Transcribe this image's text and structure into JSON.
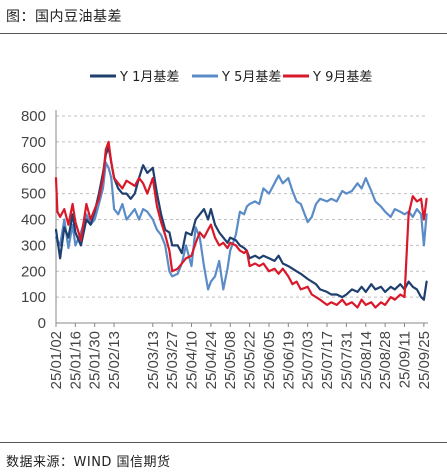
{
  "figure": {
    "title": "图：国内豆油基差",
    "source": "数据来源：WIND 国信期货"
  },
  "colors": {
    "Y1": "#1f3f6e",
    "Y5": "#5b8cc8",
    "Y9": "#d9182a",
    "grid": "#bfbfbf",
    "axis": "#888888"
  },
  "chart_data": {
    "type": "line",
    "title": "",
    "xlabel": "",
    "ylabel": "",
    "ylim": [
      0,
      800
    ],
    "yticks": [
      0,
      100,
      200,
      300,
      400,
      500,
      600,
      700,
      800
    ],
    "grid": "horizontal dashed",
    "legend_position": "top",
    "x_tick_labels": [
      "25/01/02",
      "25/01/16",
      "25/01/30",
      "25/02/13",
      "25/03/13",
      "25/03/27",
      "25/04/10",
      "25/04/24",
      "25/05/08",
      "25/05/22",
      "25/06/05",
      "25/06/19",
      "25/07/03",
      "25/07/17",
      "25/07/31",
      "25/08/14",
      "25/08/28",
      "25/09/11",
      "25/09/25"
    ],
    "series": [
      {
        "name": "Y 1月基差",
        "key": "Y1",
        "points": [
          [
            "25/01/02",
            360
          ],
          [
            "25/01/05",
            250
          ],
          [
            "25/01/08",
            370
          ],
          [
            "25/01/11",
            330
          ],
          [
            "25/01/14",
            420
          ],
          [
            "25/01/16",
            350
          ],
          [
            "25/01/20",
            300
          ],
          [
            "25/01/24",
            400
          ],
          [
            "25/01/27",
            380
          ],
          [
            "25/01/30",
            430
          ],
          [
            "25/02/02",
            500
          ],
          [
            "25/02/05",
            580
          ],
          [
            "25/02/07",
            650
          ],
          [
            "25/02/09",
            680
          ],
          [
            "25/02/11",
            620
          ],
          [
            "25/02/13",
            560
          ],
          [
            "25/02/16",
            520
          ],
          [
            "25/02/19",
            500
          ],
          [
            "25/02/22",
            500
          ],
          [
            "25/02/25",
            480
          ],
          [
            "25/02/28",
            500
          ],
          [
            "25/03/03",
            560
          ],
          [
            "25/03/06",
            610
          ],
          [
            "25/03/09",
            580
          ],
          [
            "25/03/13",
            600
          ],
          [
            "25/03/16",
            500
          ],
          [
            "25/03/19",
            420
          ],
          [
            "25/03/22",
            360
          ],
          [
            "25/03/25",
            350
          ],
          [
            "25/03/27",
            300
          ],
          [
            "25/03/31",
            300
          ],
          [
            "25/04/03",
            270
          ],
          [
            "25/04/06",
            350
          ],
          [
            "25/04/10",
            340
          ],
          [
            "25/04/13",
            400
          ],
          [
            "25/04/16",
            420
          ],
          [
            "25/04/19",
            440
          ],
          [
            "25/04/22",
            400
          ],
          [
            "25/04/24",
            440
          ],
          [
            "25/04/27",
            380
          ],
          [
            "25/04/30",
            350
          ],
          [
            "25/05/03",
            330
          ],
          [
            "25/05/06",
            310
          ],
          [
            "25/05/08",
            330
          ],
          [
            "25/05/12",
            320
          ],
          [
            "25/05/15",
            300
          ],
          [
            "25/05/18",
            290
          ],
          [
            "25/05/20",
            280
          ],
          [
            "25/05/22",
            250
          ],
          [
            "25/05/26",
            260
          ],
          [
            "25/05/29",
            250
          ],
          [
            "25/06/01",
            260
          ],
          [
            "25/06/05",
            250
          ],
          [
            "25/06/09",
            240
          ],
          [
            "25/06/12",
            260
          ],
          [
            "25/06/15",
            230
          ],
          [
            "25/06/19",
            220
          ],
          [
            "25/06/22",
            210
          ],
          [
            "25/06/25",
            200
          ],
          [
            "25/06/28",
            190
          ],
          [
            "25/07/03",
            170
          ],
          [
            "25/07/06",
            160
          ],
          [
            "25/07/09",
            150
          ],
          [
            "25/07/12",
            130
          ],
          [
            "25/07/17",
            120
          ],
          [
            "25/07/20",
            110
          ],
          [
            "25/07/24",
            110
          ],
          [
            "25/07/28",
            100
          ],
          [
            "25/07/31",
            110
          ],
          [
            "25/08/04",
            130
          ],
          [
            "25/08/08",
            120
          ],
          [
            "25/08/11",
            140
          ],
          [
            "25/08/14",
            120
          ],
          [
            "25/08/18",
            150
          ],
          [
            "25/08/21",
            130
          ],
          [
            "25/08/25",
            140
          ],
          [
            "25/08/28",
            120
          ],
          [
            "25/09/01",
            140
          ],
          [
            "25/09/04",
            130
          ],
          [
            "25/09/08",
            150
          ],
          [
            "25/09/11",
            130
          ],
          [
            "25/09/14",
            160
          ],
          [
            "25/09/17",
            140
          ],
          [
            "25/09/20",
            130
          ],
          [
            "25/09/23",
            100
          ],
          [
            "25/09/25",
            90
          ],
          [
            "25/09/27",
            160
          ]
        ]
      },
      {
        "name": "Y 5月基差",
        "key": "Y5",
        "points": [
          [
            "25/01/02",
            330
          ],
          [
            "25/01/05",
            300
          ],
          [
            "25/01/08",
            400
          ],
          [
            "25/01/11",
            290
          ],
          [
            "25/01/14",
            380
          ],
          [
            "25/01/16",
            300
          ],
          [
            "25/01/20",
            350
          ],
          [
            "25/01/24",
            420
          ],
          [
            "25/01/27",
            380
          ],
          [
            "25/01/30",
            400
          ],
          [
            "25/02/02",
            460
          ],
          [
            "25/02/05",
            520
          ],
          [
            "25/02/07",
            620
          ],
          [
            "25/02/09",
            600
          ],
          [
            "25/02/11",
            560
          ],
          [
            "25/02/13",
            440
          ],
          [
            "25/02/16",
            420
          ],
          [
            "25/02/19",
            460
          ],
          [
            "25/02/22",
            400
          ],
          [
            "25/02/25",
            420
          ],
          [
            "25/02/28",
            440
          ],
          [
            "25/03/03",
            400
          ],
          [
            "25/03/06",
            440
          ],
          [
            "25/03/09",
            430
          ],
          [
            "25/03/13",
            400
          ],
          [
            "25/03/16",
            360
          ],
          [
            "25/03/19",
            340
          ],
          [
            "25/03/22",
            300
          ],
          [
            "25/03/25",
            200
          ],
          [
            "25/03/27",
            180
          ],
          [
            "25/03/31",
            190
          ],
          [
            "25/04/03",
            230
          ],
          [
            "25/04/06",
            300
          ],
          [
            "25/04/10",
            220
          ],
          [
            "25/04/13",
            370
          ],
          [
            "25/04/16",
            330
          ],
          [
            "25/04/19",
            220
          ],
          [
            "25/04/22",
            130
          ],
          [
            "25/04/24",
            160
          ],
          [
            "25/04/27",
            180
          ],
          [
            "25/04/30",
            240
          ],
          [
            "25/05/03",
            130
          ],
          [
            "25/05/06",
            210
          ],
          [
            "25/05/08",
            280
          ],
          [
            "25/05/12",
            340
          ],
          [
            "25/05/15",
            430
          ],
          [
            "25/05/18",
            420
          ],
          [
            "25/05/20",
            450
          ],
          [
            "25/05/22",
            460
          ],
          [
            "25/05/26",
            470
          ],
          [
            "25/05/29",
            460
          ],
          [
            "25/06/01",
            520
          ],
          [
            "25/06/05",
            500
          ],
          [
            "25/06/09",
            540
          ],
          [
            "25/06/12",
            570
          ],
          [
            "25/06/15",
            540
          ],
          [
            "25/06/19",
            560
          ],
          [
            "25/06/22",
            510
          ],
          [
            "25/06/25",
            470
          ],
          [
            "25/06/28",
            460
          ],
          [
            "25/07/03",
            390
          ],
          [
            "25/07/06",
            410
          ],
          [
            "25/07/09",
            460
          ],
          [
            "25/07/12",
            480
          ],
          [
            "25/07/17",
            470
          ],
          [
            "25/07/20",
            480
          ],
          [
            "25/07/24",
            470
          ],
          [
            "25/07/28",
            510
          ],
          [
            "25/07/31",
            500
          ],
          [
            "25/08/04",
            510
          ],
          [
            "25/08/08",
            540
          ],
          [
            "25/08/11",
            520
          ],
          [
            "25/08/14",
            560
          ],
          [
            "25/08/18",
            510
          ],
          [
            "25/08/21",
            470
          ],
          [
            "25/08/25",
            450
          ],
          [
            "25/08/28",
            430
          ],
          [
            "25/09/01",
            410
          ],
          [
            "25/09/04",
            440
          ],
          [
            "25/09/08",
            430
          ],
          [
            "25/09/11",
            420
          ],
          [
            "25/09/14",
            430
          ],
          [
            "25/09/17",
            410
          ],
          [
            "25/09/20",
            440
          ],
          [
            "25/09/23",
            420
          ],
          [
            "25/09/25",
            300
          ],
          [
            "25/09/27",
            420
          ]
        ]
      },
      {
        "name": "Y 9月基差",
        "key": "Y9",
        "points": [
          [
            "25/01/02",
            560
          ],
          [
            "25/01/03",
            430
          ],
          [
            "25/01/05",
            410
          ],
          [
            "25/01/08",
            440
          ],
          [
            "25/01/11",
            380
          ],
          [
            "25/01/14",
            460
          ],
          [
            "25/01/16",
            390
          ],
          [
            "25/01/20",
            320
          ],
          [
            "25/01/24",
            460
          ],
          [
            "25/01/27",
            400
          ],
          [
            "25/01/30",
            440
          ],
          [
            "25/02/02",
            480
          ],
          [
            "25/02/05",
            560
          ],
          [
            "25/02/07",
            670
          ],
          [
            "25/02/09",
            700
          ],
          [
            "25/02/11",
            620
          ],
          [
            "25/02/13",
            560
          ],
          [
            "25/02/16",
            540
          ],
          [
            "25/02/19",
            520
          ],
          [
            "25/02/22",
            550
          ],
          [
            "25/02/25",
            540
          ],
          [
            "25/02/28",
            530
          ],
          [
            "25/03/03",
            560
          ],
          [
            "25/03/06",
            540
          ],
          [
            "25/03/09",
            500
          ],
          [
            "25/03/13",
            560
          ],
          [
            "25/03/16",
            450
          ],
          [
            "25/03/19",
            390
          ],
          [
            "25/03/22",
            340
          ],
          [
            "25/03/25",
            280
          ],
          [
            "25/03/27",
            200
          ],
          [
            "25/03/31",
            210
          ],
          [
            "25/04/03",
            230
          ],
          [
            "25/04/06",
            250
          ],
          [
            "25/04/10",
            260
          ],
          [
            "25/04/13",
            310
          ],
          [
            "25/04/16",
            350
          ],
          [
            "25/04/19",
            330
          ],
          [
            "25/04/22",
            360
          ],
          [
            "25/04/24",
            380
          ],
          [
            "25/04/27",
            330
          ],
          [
            "25/04/30",
            300
          ],
          [
            "25/05/03",
            310
          ],
          [
            "25/05/06",
            290
          ],
          [
            "25/05/08",
            310
          ],
          [
            "25/05/12",
            300
          ],
          [
            "25/05/15",
            280
          ],
          [
            "25/05/18",
            270
          ],
          [
            "25/05/20",
            280
          ],
          [
            "25/05/22",
            220
          ],
          [
            "25/05/26",
            230
          ],
          [
            "25/05/29",
            220
          ],
          [
            "25/06/01",
            230
          ],
          [
            "25/06/05",
            200
          ],
          [
            "25/06/09",
            210
          ],
          [
            "25/06/12",
            190
          ],
          [
            "25/06/15",
            210
          ],
          [
            "25/06/19",
            180
          ],
          [
            "25/06/22",
            150
          ],
          [
            "25/06/25",
            160
          ],
          [
            "25/06/28",
            130
          ],
          [
            "25/07/03",
            140
          ],
          [
            "25/07/06",
            110
          ],
          [
            "25/07/09",
            100
          ],
          [
            "25/07/12",
            90
          ],
          [
            "25/07/17",
            70
          ],
          [
            "25/07/20",
            80
          ],
          [
            "25/07/24",
            70
          ],
          [
            "25/07/28",
            90
          ],
          [
            "25/07/31",
            70
          ],
          [
            "25/08/04",
            80
          ],
          [
            "25/08/08",
            60
          ],
          [
            "25/08/11",
            90
          ],
          [
            "25/08/14",
            70
          ],
          [
            "25/08/18",
            80
          ],
          [
            "25/08/21",
            60
          ],
          [
            "25/08/25",
            80
          ],
          [
            "25/08/28",
            70
          ],
          [
            "25/09/01",
            100
          ],
          [
            "25/09/04",
            90
          ],
          [
            "25/09/08",
            110
          ],
          [
            "25/09/11",
            100
          ],
          [
            "25/09/14",
            420
          ],
          [
            "25/09/17",
            490
          ],
          [
            "25/09/20",
            470
          ],
          [
            "25/09/23",
            480
          ],
          [
            "25/09/25",
            400
          ],
          [
            "25/09/27",
            480
          ]
        ]
      }
    ]
  }
}
